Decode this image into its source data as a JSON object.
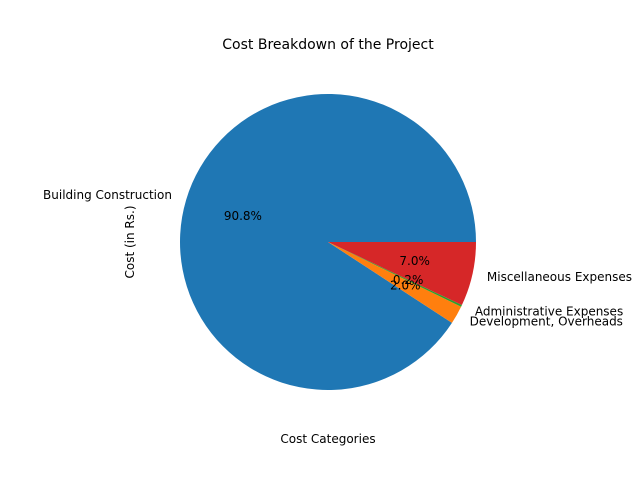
{
  "chart_data": {
    "type": "pie",
    "title": "Cost Breakdown of the Project",
    "xlabel": "Cost Categories",
    "ylabel": "Cost (in Rs.)",
    "start_angle_deg": 0,
    "direction": "counterclockwise",
    "slices": [
      {
        "label": "Building Construction",
        "percent": 90.8,
        "pct_text": "90.8%",
        "color": "#1f77b4"
      },
      {
        "label": "Development, Overheads",
        "percent": 2.0,
        "pct_text": "2.0%",
        "color": "#ff7f0e"
      },
      {
        "label": "Administrative Expenses",
        "percent": 0.2,
        "pct_text": "0.2%",
        "color": "#2ca02c"
      },
      {
        "label": "Miscellaneous Expenses",
        "percent": 7.0,
        "pct_text": "7.0%",
        "color": "#d62728"
      }
    ]
  }
}
